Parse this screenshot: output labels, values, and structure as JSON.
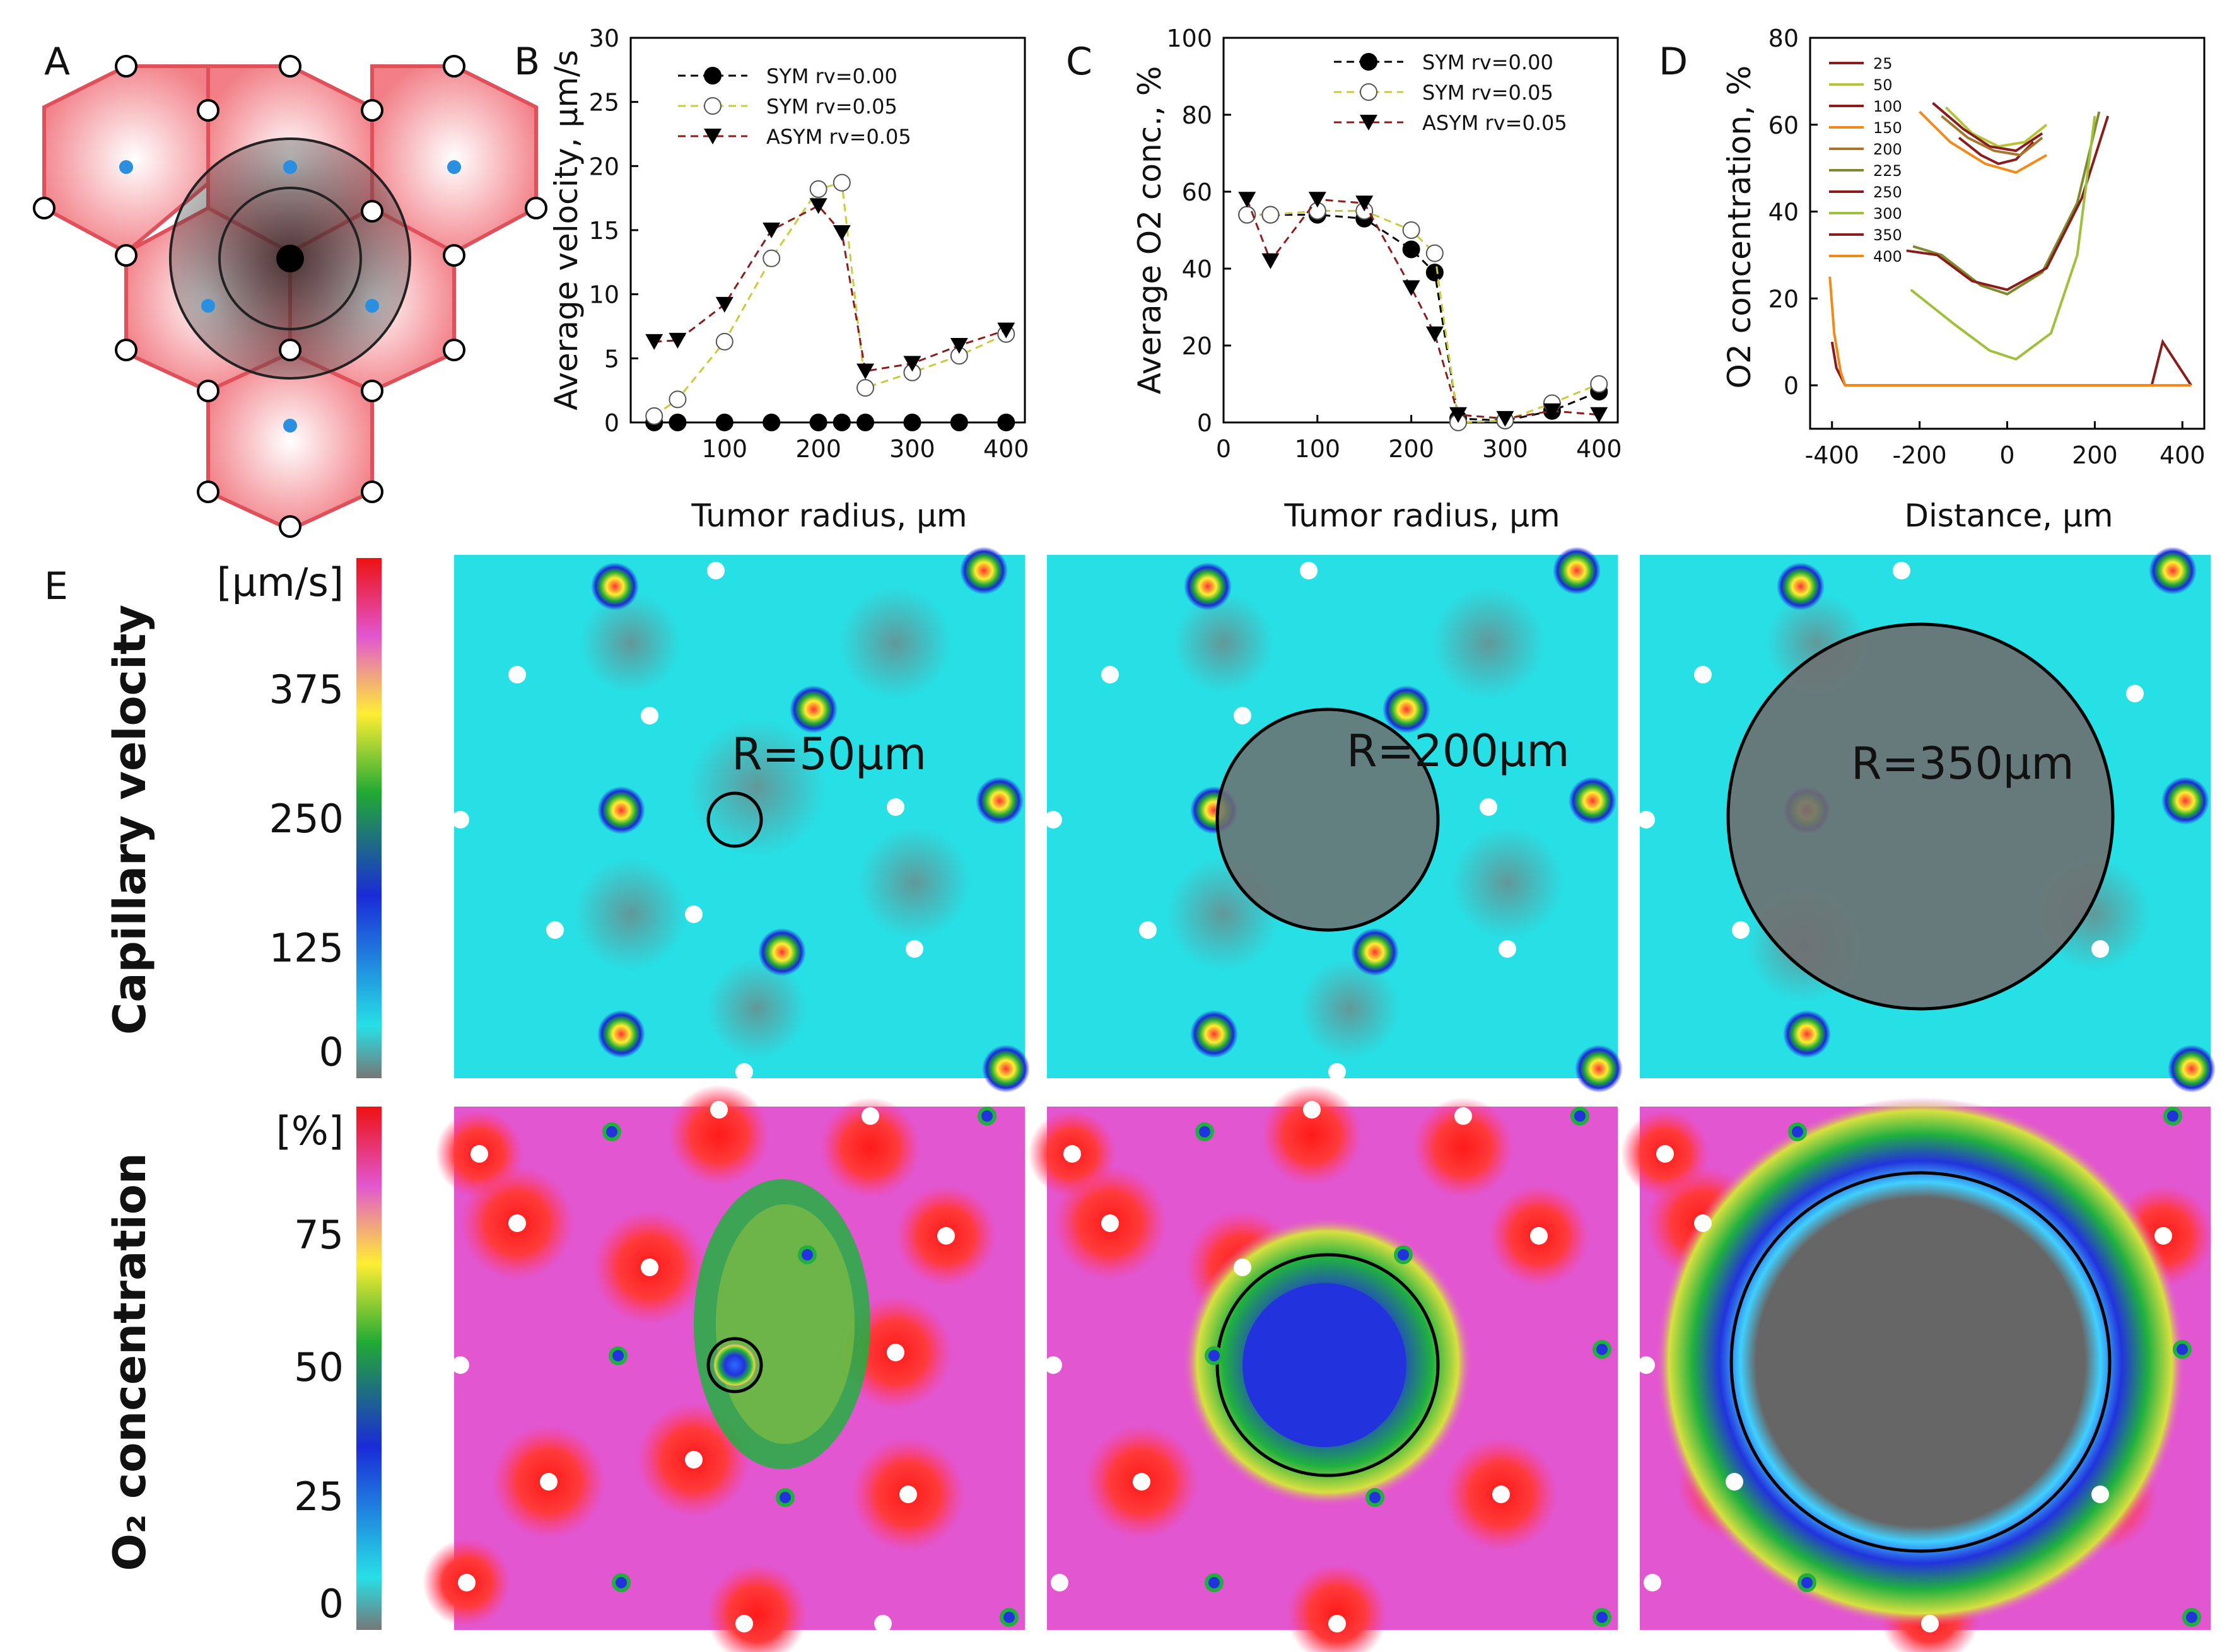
{
  "panel_labels": {
    "a": "A",
    "b": "B",
    "c": "C",
    "d": "D",
    "e": "E"
  },
  "colors": {
    "hex_fill": "#f48f95",
    "hex_stroke": "#e0505a",
    "blue_dot": "#2a8fe0",
    "vel_bg": "#27e0e6",
    "o2_bg": "#e256d0",
    "necrotic_gray": "#6f6f6f",
    "sym0": "#000000",
    "sym05": "#c8cc3a",
    "asym05": "#8a1c1c"
  },
  "chart_data": [
    {
      "panel": "B",
      "type": "line",
      "xlabel": "Tumor radius, μm",
      "ylabel": "Average velocity, μm/s",
      "xlim": [
        0,
        420
      ],
      "ylim": [
        0,
        30
      ],
      "xticks": [
        "100",
        "200",
        "300",
        "400"
      ],
      "yticks": [
        "0",
        "5",
        "10",
        "15",
        "20",
        "25",
        "30"
      ],
      "series": [
        {
          "name": "SYM rv=0.00",
          "x": [
            25,
            50,
            100,
            150,
            200,
            225,
            250,
            300,
            350,
            400
          ],
          "values": [
            0,
            0,
            0,
            0,
            0,
            0,
            0,
            0,
            0,
            0
          ],
          "marker": "circle-filled"
        },
        {
          "name": "SYM rv=0.05",
          "x": [
            25,
            50,
            100,
            150,
            200,
            225,
            250,
            300,
            350,
            400
          ],
          "values": [
            0.5,
            1.8,
            6.3,
            12.8,
            18.2,
            18.7,
            2.7,
            3.9,
            5.2,
            6.9
          ],
          "marker": "circle-open"
        },
        {
          "name": "ASYM rv=0.05",
          "x": [
            25,
            50,
            100,
            150,
            200,
            225,
            250,
            300,
            350,
            400
          ],
          "values": [
            6.3,
            6.4,
            9.2,
            15.0,
            16.9,
            14.8,
            4.0,
            4.6,
            6.0,
            7.2
          ],
          "marker": "triangle-down"
        }
      ]
    },
    {
      "panel": "C",
      "type": "line",
      "xlabel": "Tumor radius, μm",
      "ylabel": "Average O2 conc., %",
      "xlim": [
        0,
        420
      ],
      "ylim": [
        0,
        100
      ],
      "xticks": [
        "0",
        "100",
        "200",
        "300",
        "400"
      ],
      "yticks": [
        "0",
        "20",
        "40",
        "60",
        "80",
        "100"
      ],
      "series": [
        {
          "name": "SYM rv=0.00",
          "x": [
            25,
            50,
            100,
            150,
            200,
            225,
            250,
            300,
            350,
            400
          ],
          "values": [
            54,
            54,
            54,
            53,
            45,
            39,
            1,
            0.5,
            3,
            8
          ],
          "marker": "circle-filled"
        },
        {
          "name": "SYM rv=0.05",
          "x": [
            25,
            50,
            100,
            150,
            200,
            225,
            250,
            300,
            350,
            400
          ],
          "values": [
            54,
            54,
            55,
            55,
            50,
            44,
            0,
            0.5,
            5,
            10
          ],
          "marker": "circle-open"
        },
        {
          "name": "ASYM rv=0.05",
          "x": [
            25,
            50,
            100,
            150,
            200,
            225,
            250,
            300,
            350,
            400
          ],
          "values": [
            58,
            42,
            58,
            57,
            35,
            23,
            2,
            1,
            3,
            2
          ],
          "marker": "triangle-down"
        }
      ]
    },
    {
      "panel": "D",
      "type": "line",
      "xlabel": "Distance, μm",
      "ylabel": "O2 concentration, %",
      "xlim": [
        -450,
        450
      ],
      "ylim": [
        -10,
        80
      ],
      "xticks": [
        "-400",
        "-200",
        "0",
        "200",
        "400"
      ],
      "yticks": [
        "0",
        "20",
        "40",
        "60",
        "80"
      ],
      "series": [
        {
          "name": "25",
          "color": "#8a1c1c",
          "x": [
            -110,
            -60,
            -20,
            20,
            60
          ],
          "values": [
            57,
            53,
            51,
            52,
            56
          ]
        },
        {
          "name": "50",
          "color": "#b7c435",
          "x": [
            -140,
            -80,
            -20,
            40,
            90
          ],
          "values": [
            64,
            58,
            55,
            56,
            60
          ]
        },
        {
          "name": "100",
          "color": "#8a1c1c",
          "x": [
            -170,
            -100,
            -40,
            20,
            80
          ],
          "values": [
            65,
            59,
            55,
            54,
            58
          ]
        },
        {
          "name": "150",
          "color": "#f28a1a",
          "x": [
            -200,
            -130,
            -50,
            20,
            90
          ],
          "values": [
            63,
            56,
            51,
            49,
            53
          ]
        },
        {
          "name": "200",
          "color": "#a8752c",
          "x": [
            -150,
            -90,
            -30,
            30,
            80
          ],
          "values": [
            62,
            57,
            54,
            53,
            57
          ]
        },
        {
          "name": "225",
          "color": "#7f8a2a",
          "x": [
            -215,
            -150,
            -60,
            0,
            80,
            160,
            210
          ],
          "values": [
            32,
            30,
            23,
            21,
            26,
            42,
            63
          ]
        },
        {
          "name": "250",
          "color": "#8a1c1c",
          "x": [
            -230,
            -160,
            -80,
            0,
            90,
            170,
            230
          ],
          "values": [
            31,
            30,
            24,
            22,
            27,
            43,
            62
          ]
        },
        {
          "name": "300",
          "color": "#a0bf3a",
          "x": [
            -220,
            -120,
            -40,
            20,
            100,
            160,
            200
          ],
          "values": [
            22,
            14,
            8,
            6,
            12,
            30,
            62
          ]
        },
        {
          "name": "350",
          "color": "#8a1c1c",
          "x": [
            -400,
            -390,
            -370,
            150,
            330,
            355,
            420
          ],
          "values": [
            10,
            4,
            0,
            0,
            0,
            10,
            0
          ]
        },
        {
          "name": "400",
          "color": "#f28a1a",
          "x": [
            -405,
            -395,
            -380,
            -370,
            420
          ],
          "values": [
            25,
            12,
            3,
            0,
            0
          ]
        }
      ]
    }
  ],
  "panel_e": {
    "row1_title": "Capillary velocity",
    "row1_unit": "[μm/s]",
    "row1_ticks": [
      "375",
      "250",
      "125",
      "0"
    ],
    "row2_title": "O₂ concentration",
    "row2_unit": "[%]",
    "row2_ticks": [
      "75",
      "50",
      "25",
      "0"
    ],
    "radii_labels": [
      "R=50μm",
      "R=200μm",
      "R=350μm"
    ]
  }
}
